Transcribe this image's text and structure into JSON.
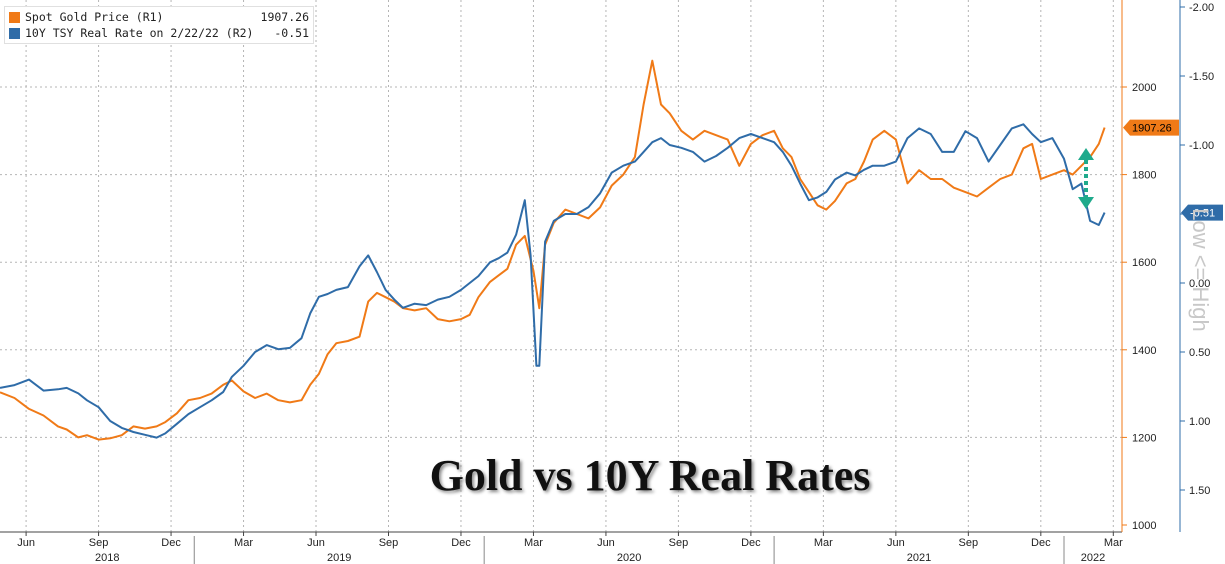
{
  "legend": {
    "gold_label": "Spot Gold Price (R1)",
    "gold_value": "1907.26",
    "rate_label": "10Y TSY Real Rate on 2/22/22 (R2)",
    "rate_value": "-0.51"
  },
  "title": "Gold vs 10Y Real Rates",
  "side_label": "Low <= High",
  "colors": {
    "gold": "#f07a17",
    "rate": "#2f6ca8",
    "arrow": "#1faa8c",
    "grid": "#b5b5b5"
  },
  "chart_data": {
    "type": "line",
    "title": "Gold vs 10Y Real Rates",
    "x_ticks": [
      "Jun",
      "Sep",
      "Dec",
      "Mar",
      "Jun",
      "Sep",
      "Dec",
      "Mar",
      "Jun",
      "Sep",
      "Dec",
      "Mar",
      "Jun",
      "Sep",
      "Dec",
      "Mar"
    ],
    "x_tick_positions": [
      2018.42,
      2018.67,
      2018.92,
      2019.17,
      2019.42,
      2019.67,
      2019.92,
      2020.17,
      2020.42,
      2020.67,
      2020.92,
      2021.17,
      2021.42,
      2021.67,
      2021.92,
      2022.17
    ],
    "year_labels": [
      "2018",
      "2019",
      "2020",
      "2021",
      "2022"
    ],
    "year_positions": [
      2018.7,
      2019.5,
      2020.5,
      2021.5,
      2022.1
    ],
    "xlim": [
      2018.33,
      2022.2
    ],
    "y1_ticks": [
      1000,
      1200,
      1400,
      1600,
      1800,
      2000
    ],
    "y1lim": [
      990,
      2130
    ],
    "y2_ticks": [
      "-2.00",
      "-1.50",
      "-1.00",
      "-0.50",
      "0.00",
      "0.50",
      "1.00",
      "1.50"
    ],
    "y2_values": [
      -2.0,
      -1.5,
      -1.0,
      -0.5,
      0.0,
      0.5,
      1.0,
      1.5
    ],
    "y2lim": [
      1.6,
      -2.05
    ],
    "grid": true,
    "legend_position": "top-left",
    "last_value_labels": [
      "1907.26",
      "-0.51"
    ],
    "series": [
      {
        "name": "Spot Gold Price (R1)",
        "axis": "R1",
        "points": [
          [
            2018.33,
            1303
          ],
          [
            2018.38,
            1290
          ],
          [
            2018.43,
            1265
          ],
          [
            2018.48,
            1250
          ],
          [
            2018.53,
            1225
          ],
          [
            2018.56,
            1218
          ],
          [
            2018.6,
            1200
          ],
          [
            2018.63,
            1205
          ],
          [
            2018.67,
            1195
          ],
          [
            2018.71,
            1198
          ],
          [
            2018.75,
            1205
          ],
          [
            2018.79,
            1225
          ],
          [
            2018.83,
            1220
          ],
          [
            2018.87,
            1225
          ],
          [
            2018.9,
            1235
          ],
          [
            2018.94,
            1255
          ],
          [
            2018.98,
            1285
          ],
          [
            2019.02,
            1290
          ],
          [
            2019.06,
            1300
          ],
          [
            2019.1,
            1320
          ],
          [
            2019.13,
            1330
          ],
          [
            2019.17,
            1305
          ],
          [
            2019.21,
            1290
          ],
          [
            2019.25,
            1300
          ],
          [
            2019.29,
            1285
          ],
          [
            2019.33,
            1280
          ],
          [
            2019.37,
            1285
          ],
          [
            2019.4,
            1320
          ],
          [
            2019.43,
            1345
          ],
          [
            2019.46,
            1390
          ],
          [
            2019.49,
            1415
          ],
          [
            2019.53,
            1420
          ],
          [
            2019.57,
            1430
          ],
          [
            2019.6,
            1510
          ],
          [
            2019.63,
            1530
          ],
          [
            2019.66,
            1520
          ],
          [
            2019.69,
            1510
          ],
          [
            2019.72,
            1495
          ],
          [
            2019.76,
            1490
          ],
          [
            2019.8,
            1495
          ],
          [
            2019.84,
            1470
          ],
          [
            2019.88,
            1465
          ],
          [
            2019.92,
            1470
          ],
          [
            2019.95,
            1480
          ],
          [
            2019.98,
            1520
          ],
          [
            2020.02,
            1555
          ],
          [
            2020.05,
            1570
          ],
          [
            2020.08,
            1585
          ],
          [
            2020.11,
            1640
          ],
          [
            2020.14,
            1660
          ],
          [
            2020.17,
            1580
          ],
          [
            2020.19,
            1495
          ],
          [
            2020.21,
            1640
          ],
          [
            2020.24,
            1690
          ],
          [
            2020.28,
            1720
          ],
          [
            2020.32,
            1710
          ],
          [
            2020.36,
            1700
          ],
          [
            2020.4,
            1725
          ],
          [
            2020.44,
            1775
          ],
          [
            2020.48,
            1800
          ],
          [
            2020.52,
            1840
          ],
          [
            2020.55,
            1960
          ],
          [
            2020.58,
            2060
          ],
          [
            2020.61,
            1960
          ],
          [
            2020.64,
            1940
          ],
          [
            2020.68,
            1900
          ],
          [
            2020.72,
            1880
          ],
          [
            2020.76,
            1900
          ],
          [
            2020.8,
            1890
          ],
          [
            2020.84,
            1880
          ],
          [
            2020.88,
            1820
          ],
          [
            2020.92,
            1870
          ],
          [
            2020.96,
            1890
          ],
          [
            2021.0,
            1900
          ],
          [
            2021.03,
            1860
          ],
          [
            2021.06,
            1840
          ],
          [
            2021.09,
            1790
          ],
          [
            2021.12,
            1760
          ],
          [
            2021.15,
            1730
          ],
          [
            2021.18,
            1720
          ],
          [
            2021.21,
            1740
          ],
          [
            2021.25,
            1780
          ],
          [
            2021.28,
            1790
          ],
          [
            2021.31,
            1830
          ],
          [
            2021.34,
            1880
          ],
          [
            2021.38,
            1900
          ],
          [
            2021.42,
            1880
          ],
          [
            2021.46,
            1780
          ],
          [
            2021.5,
            1810
          ],
          [
            2021.54,
            1790
          ],
          [
            2021.58,
            1790
          ],
          [
            2021.62,
            1770
          ],
          [
            2021.66,
            1760
          ],
          [
            2021.7,
            1750
          ],
          [
            2021.74,
            1770
          ],
          [
            2021.78,
            1790
          ],
          [
            2021.82,
            1800
          ],
          [
            2021.86,
            1860
          ],
          [
            2021.89,
            1870
          ],
          [
            2021.92,
            1790
          ],
          [
            2021.96,
            1800
          ],
          [
            2022.0,
            1810
          ],
          [
            2022.03,
            1800
          ],
          [
            2022.06,
            1820
          ],
          [
            2022.09,
            1840
          ],
          [
            2022.12,
            1870
          ],
          [
            2022.14,
            1907.26
          ]
        ]
      },
      {
        "name": "10Y TSY Real Rate on 2/22/22 (R2)",
        "axis": "R2",
        "points": [
          [
            2018.33,
            0.76
          ],
          [
            2018.38,
            0.74
          ],
          [
            2018.43,
            0.7
          ],
          [
            2018.48,
            0.78
          ],
          [
            2018.53,
            0.77
          ],
          [
            2018.56,
            0.76
          ],
          [
            2018.6,
            0.8
          ],
          [
            2018.63,
            0.85
          ],
          [
            2018.67,
            0.9
          ],
          [
            2018.71,
            1.0
          ],
          [
            2018.75,
            1.05
          ],
          [
            2018.79,
            1.08
          ],
          [
            2018.83,
            1.1
          ],
          [
            2018.87,
            1.12
          ],
          [
            2018.9,
            1.09
          ],
          [
            2018.94,
            1.02
          ],
          [
            2018.98,
            0.95
          ],
          [
            2019.02,
            0.9
          ],
          [
            2019.06,
            0.85
          ],
          [
            2019.1,
            0.79
          ],
          [
            2019.13,
            0.68
          ],
          [
            2019.17,
            0.6
          ],
          [
            2019.21,
            0.5
          ],
          [
            2019.25,
            0.45
          ],
          [
            2019.29,
            0.48
          ],
          [
            2019.33,
            0.47
          ],
          [
            2019.37,
            0.4
          ],
          [
            2019.4,
            0.22
          ],
          [
            2019.43,
            0.1
          ],
          [
            2019.46,
            0.08
          ],
          [
            2019.49,
            0.05
          ],
          [
            2019.53,
            0.03
          ],
          [
            2019.57,
            -0.12
          ],
          [
            2019.6,
            -0.2
          ],
          [
            2019.63,
            -0.08
          ],
          [
            2019.66,
            0.05
          ],
          [
            2019.69,
            0.12
          ],
          [
            2019.72,
            0.18
          ],
          [
            2019.76,
            0.15
          ],
          [
            2019.8,
            0.16
          ],
          [
            2019.84,
            0.12
          ],
          [
            2019.88,
            0.1
          ],
          [
            2019.92,
            0.05
          ],
          [
            2019.95,
            0.0
          ],
          [
            2019.98,
            -0.05
          ],
          [
            2020.02,
            -0.15
          ],
          [
            2020.05,
            -0.18
          ],
          [
            2020.08,
            -0.22
          ],
          [
            2020.11,
            -0.35
          ],
          [
            2020.14,
            -0.6
          ],
          [
            2020.16,
            -0.2
          ],
          [
            2020.18,
            0.6
          ],
          [
            2020.19,
            0.6
          ],
          [
            2020.21,
            -0.3
          ],
          [
            2020.24,
            -0.45
          ],
          [
            2020.28,
            -0.5
          ],
          [
            2020.32,
            -0.5
          ],
          [
            2020.36,
            -0.55
          ],
          [
            2020.4,
            -0.65
          ],
          [
            2020.44,
            -0.8
          ],
          [
            2020.48,
            -0.85
          ],
          [
            2020.52,
            -0.88
          ],
          [
            2020.55,
            -0.95
          ],
          [
            2020.58,
            -1.02
          ],
          [
            2020.61,
            -1.05
          ],
          [
            2020.64,
            -1.0
          ],
          [
            2020.68,
            -0.98
          ],
          [
            2020.72,
            -0.95
          ],
          [
            2020.76,
            -0.88
          ],
          [
            2020.8,
            -0.92
          ],
          [
            2020.84,
            -0.98
          ],
          [
            2020.88,
            -1.05
          ],
          [
            2020.92,
            -1.08
          ],
          [
            2020.96,
            -1.05
          ],
          [
            2021.0,
            -1.02
          ],
          [
            2021.03,
            -0.95
          ],
          [
            2021.06,
            -0.85
          ],
          [
            2021.09,
            -0.72
          ],
          [
            2021.12,
            -0.6
          ],
          [
            2021.15,
            -0.62
          ],
          [
            2021.18,
            -0.66
          ],
          [
            2021.21,
            -0.75
          ],
          [
            2021.25,
            -0.8
          ],
          [
            2021.28,
            -0.78
          ],
          [
            2021.31,
            -0.82
          ],
          [
            2021.34,
            -0.85
          ],
          [
            2021.38,
            -0.85
          ],
          [
            2021.42,
            -0.88
          ],
          [
            2021.46,
            -1.05
          ],
          [
            2021.5,
            -1.12
          ],
          [
            2021.54,
            -1.08
          ],
          [
            2021.58,
            -0.95
          ],
          [
            2021.62,
            -0.95
          ],
          [
            2021.66,
            -1.1
          ],
          [
            2021.7,
            -1.05
          ],
          [
            2021.74,
            -0.88
          ],
          [
            2021.78,
            -1.0
          ],
          [
            2021.82,
            -1.12
          ],
          [
            2021.86,
            -1.15
          ],
          [
            2021.89,
            -1.08
          ],
          [
            2021.92,
            -1.02
          ],
          [
            2021.96,
            -1.05
          ],
          [
            2022.0,
            -0.9
          ],
          [
            2022.03,
            -0.68
          ],
          [
            2022.06,
            -0.72
          ],
          [
            2022.09,
            -0.45
          ],
          [
            2022.12,
            -0.42
          ],
          [
            2022.14,
            -0.51
          ]
        ]
      }
    ]
  }
}
